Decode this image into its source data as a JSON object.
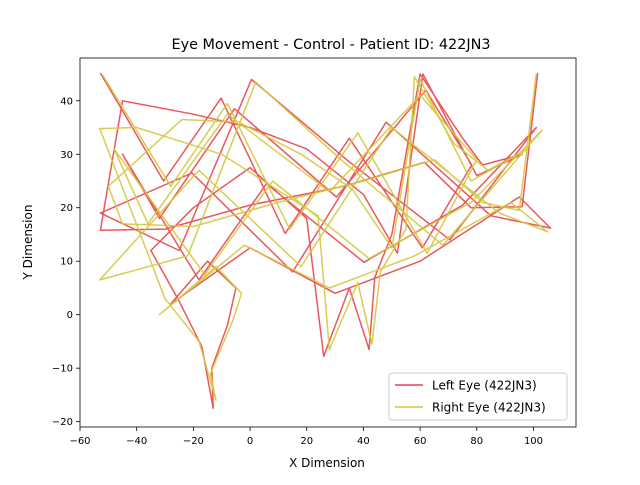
{
  "chart_data": {
    "type": "line",
    "title": "Eye Movement - Control - Patient ID: 422JN3",
    "xlabel": "X Dimension",
    "ylabel": "Y Dimension",
    "xlim": [
      -60,
      115
    ],
    "ylim": [
      -21,
      48
    ],
    "xticks": [
      -60,
      -40,
      -20,
      0,
      20,
      40,
      60,
      80,
      100
    ],
    "yticks": [
      -20,
      -10,
      0,
      10,
      20,
      30,
      40
    ],
    "legend_position": "lower-right",
    "series": [
      {
        "name": "Left Eye (422JN3)",
        "color": "#e8454b",
        "x": [
          -52.8,
          -30.5,
          -10.2,
          12.4,
          35.0,
          60.8,
          78.2,
          62.0,
          30.5,
          -5.5,
          -32.0,
          -45.0,
          -18.0,
          5.8,
          40.2,
          75.0,
          101.0,
          70.5,
          35.2,
          0.5,
          -25.0,
          -52.8,
          -20.5,
          15.0,
          48.0,
          85.0,
          106.0,
          95.0,
          60.0,
          30.0,
          0.0,
          -28.0,
          -15.0,
          -5.0,
          -8.0,
          -13.5,
          -13.0,
          -17.0,
          -25.0,
          -35.0,
          -20.0,
          0.0,
          20.0,
          26.0,
          35.0,
          42.0,
          44.0,
          50.0,
          60.0,
          75.0,
          82.0,
          96.0,
          80.0,
          61.0,
          52.0,
          40.0,
          20.0,
          0.0,
          -20.0,
          -45.0,
          -52.8,
          -30.0,
          0.0,
          33.0,
          61.5,
          78.0,
          96.0,
          101.5
        ],
        "y": [
          45.2,
          25.0,
          40.5,
          15.2,
          33.0,
          12.5,
          28.0,
          42.0,
          22.0,
          38.5,
          18.0,
          30.0,
          6.5,
          24.5,
          9.8,
          20.5,
          35.0,
          14.0,
          28.5,
          44.0,
          12.0,
          19.0,
          26.5,
          8.0,
          36.0,
          18.5,
          16.2,
          22.0,
          10.0,
          4.0,
          12.5,
          2.0,
          10.0,
          5.0,
          -2.0,
          -10.0,
          -17.5,
          -6.0,
          2.5,
          12.0,
          20.0,
          27.5,
          18.0,
          -7.8,
          5.0,
          -6.5,
          7.0,
          15.0,
          45.0,
          33.0,
          28.0,
          30.0,
          26.0,
          45.0,
          11.5,
          22.5,
          31.0,
          35.0,
          37.5,
          40.0,
          15.8,
          16.0,
          20.5,
          24.0,
          28.5,
          20.0,
          20.2,
          45.2
        ]
      },
      {
        "name": "Right Eye (422JN3)",
        "color": "#d4c83c",
        "x": [
          -52.0,
          -28.0,
          -8.0,
          14.0,
          38.0,
          62.5,
          80.0,
          60.0,
          28.0,
          -8.0,
          -36.0,
          -48.0,
          -16.0,
          8.0,
          42.0,
          78.0,
          103.0,
          68.0,
          32.0,
          2.0,
          -22.0,
          -53.0,
          -18.0,
          18.0,
          50.0,
          88.0,
          105.0,
          92.0,
          58.0,
          28.0,
          -2.0,
          -32.0,
          -12.0,
          -3.0,
          -6.0,
          -14.0,
          -12.0,
          -18.0,
          -30.0,
          -53.0,
          -40.0,
          -10.0,
          24.0,
          28.0,
          38.0,
          43.0,
          46.0,
          55.0,
          58.0,
          72.0,
          84.0,
          98.0,
          78.0,
          60.0,
          50.0,
          36.0,
          18.0,
          -4.0,
          -24.0,
          -50.0,
          -45.0,
          -20.0,
          10.0,
          40.0,
          65.0,
          82.0,
          95.0,
          101.0
        ],
        "y": [
          44.8,
          24.0,
          39.5,
          16.0,
          34.0,
          11.5,
          29.0,
          41.0,
          23.0,
          37.5,
          17.0,
          31.0,
          7.5,
          25.0,
          10.5,
          21.0,
          34.5,
          13.0,
          29.0,
          43.5,
          11.0,
          6.5,
          27.0,
          9.0,
          35.0,
          19.0,
          15.5,
          21.0,
          11.0,
          5.0,
          13.0,
          0.0,
          9.0,
          4.0,
          -1.0,
          -11.0,
          -16.0,
          -5.0,
          3.0,
          34.8,
          35.0,
          30.0,
          18.5,
          -6.5,
          6.0,
          -5.5,
          8.0,
          16.0,
          44.5,
          32.0,
          27.0,
          31.0,
          25.0,
          44.0,
          12.5,
          23.5,
          30.0,
          36.0,
          36.5,
          24.0,
          17.0,
          16.5,
          21.0,
          25.0,
          29.0,
          21.0,
          19.5,
          45.0
        ]
      }
    ]
  }
}
